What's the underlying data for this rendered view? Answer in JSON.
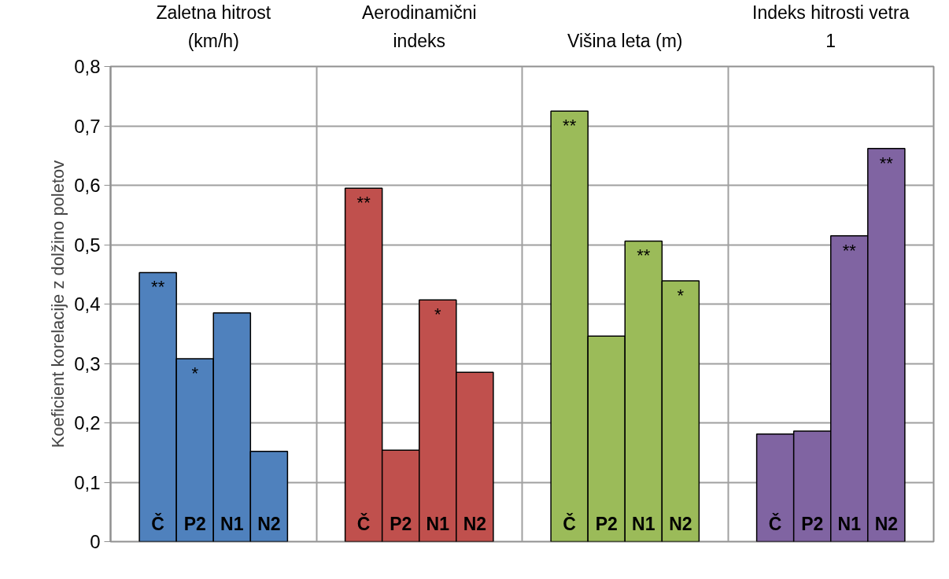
{
  "chart_data": {
    "type": "bar",
    "ylabel": "Koeficient korelacije z dolžino poletov",
    "categories": [
      "Zaletna hitrost\n(km/h)",
      "Aerodinamični\nindeks",
      "Višina leta (m)",
      "Indeks hitrosti vetra\n1"
    ],
    "series": [
      {
        "name": "Č",
        "colors": [
          "#4f81bd",
          "#c0504d",
          "#9bbb59",
          "#8064a2"
        ],
        "values": [
          0.453,
          0.595,
          0.725,
          0.181
        ],
        "value_labels": [
          "**",
          "**",
          "**",
          null
        ]
      },
      {
        "name": "P2",
        "colors": [
          "#4f81bd",
          "#c0504d",
          "#9bbb59",
          "#8064a2"
        ],
        "values": [
          0.308,
          0.154,
          0.346,
          0.186
        ],
        "value_labels": [
          "*",
          null,
          null,
          null
        ]
      },
      {
        "name": "N1",
        "colors": [
          "#4f81bd",
          "#c0504d",
          "#9bbb59",
          "#8064a2"
        ],
        "values": [
          0.385,
          0.407,
          0.506,
          0.515
        ],
        "value_labels": [
          null,
          "*",
          "**",
          "**"
        ]
      },
      {
        "name": "N2",
        "colors": [
          "#4f81bd",
          "#c0504d",
          "#9bbb59",
          "#8064a2"
        ],
        "values": [
          0.152,
          0.285,
          0.439,
          0.662
        ],
        "value_labels": [
          null,
          null,
          "*",
          "**"
        ]
      }
    ],
    "ylim": [
      0,
      0.8
    ],
    "yticks": [
      0,
      {
        "value": 0.1,
        "label": "0,1"
      },
      {
        "value": 0.2,
        "label": "0,2"
      },
      {
        "value": 0.3,
        "label": "0,3"
      },
      {
        "value": 0.4,
        "label": "0,4"
      },
      {
        "value": 0.5,
        "label": "0,5"
      },
      {
        "value": 0.6,
        "label": "0,6"
      },
      {
        "value": 0.7,
        "label": "0,7"
      },
      {
        "value": 0.8,
        "label": "0,8"
      }
    ],
    "grid": true
  }
}
